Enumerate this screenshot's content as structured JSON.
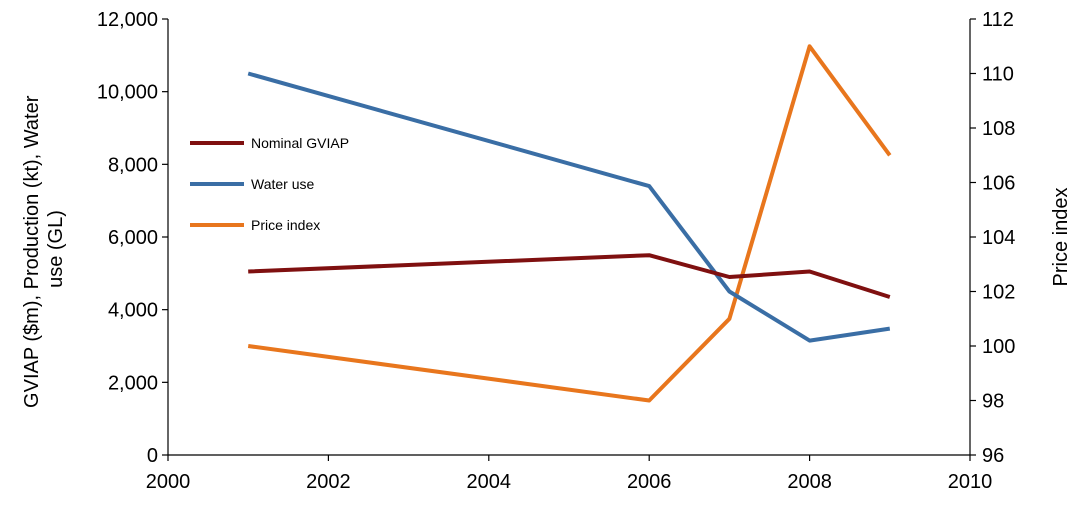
{
  "chart_data": {
    "type": "line",
    "x_axis": {
      "ticks": [
        2000,
        2002,
        2004,
        2006,
        2008,
        2010
      ],
      "tick_labels": [
        "2000",
        "2002",
        "2004",
        "2006",
        "2008",
        "2010"
      ],
      "range": [
        2000,
        2010
      ]
    },
    "y_left": {
      "title": "GVIAP ($m),  Production (kt),  Water use (GL)",
      "title_lines": [
        "GVIAP ($m),  Production (kt),  Water",
        "use (GL)"
      ],
      "ticks": [
        0,
        2000,
        4000,
        6000,
        8000,
        10000,
        12000
      ],
      "tick_labels": [
        "0",
        "2,000",
        "4,000",
        "6,000",
        "8,000",
        "10,000",
        "12,000"
      ],
      "range": [
        0,
        12000
      ]
    },
    "y_right": {
      "title": "Price index",
      "ticks": [
        96,
        98,
        100,
        102,
        104,
        106,
        108,
        110,
        112
      ],
      "tick_labels": [
        "96",
        "98",
        "100",
        "102",
        "104",
        "106",
        "108",
        "110",
        "112"
      ],
      "range": [
        96,
        112
      ]
    },
    "grid": false,
    "legend_position": "left-inside",
    "series": [
      {
        "name": "Nominal GVIAP",
        "axis": "left",
        "color": "#7f1010",
        "x": [
          2001,
          2006,
          2007,
          2008,
          2009
        ],
        "y": [
          5050,
          5500,
          4900,
          5050,
          4350
        ]
      },
      {
        "name": "Water use",
        "axis": "left",
        "color": "#3a6ea5",
        "x": [
          2001,
          2006,
          2007,
          2008,
          2009
        ],
        "y": [
          10500,
          7400,
          4500,
          3150,
          3480
        ]
      },
      {
        "name": "Price index",
        "axis": "right",
        "color": "#e8761d",
        "x": [
          2001,
          2006,
          2007,
          2008,
          2009
        ],
        "y": [
          100,
          98,
          101,
          111,
          107
        ]
      }
    ]
  }
}
